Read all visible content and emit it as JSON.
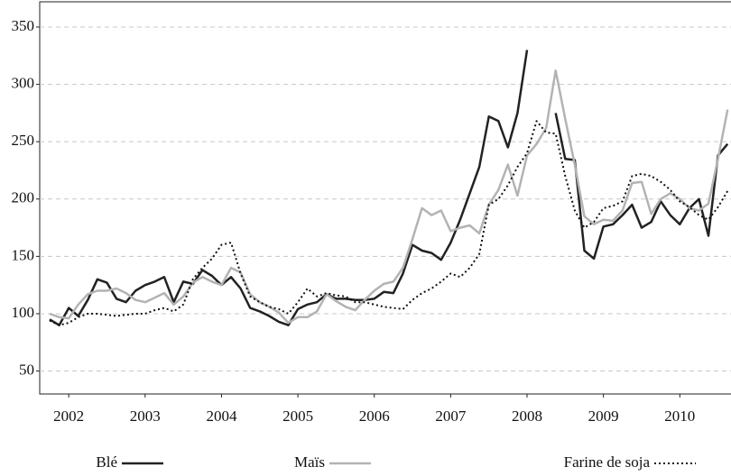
{
  "chart_data": {
    "type": "line",
    "x": [
      2001.75,
      2001.875,
      2002,
      2002.125,
      2002.25,
      2002.375,
      2002.5,
      2002.625,
      2002.75,
      2002.875,
      2003,
      2003.125,
      2003.25,
      2003.375,
      2003.5,
      2003.625,
      2003.75,
      2003.875,
      2004,
      2004.125,
      2004.25,
      2004.375,
      2004.5,
      2004.625,
      2004.75,
      2004.875,
      2005,
      2005.125,
      2005.25,
      2005.375,
      2005.5,
      2005.625,
      2005.75,
      2005.875,
      2006,
      2006.125,
      2006.25,
      2006.375,
      2006.5,
      2006.625,
      2006.75,
      2006.875,
      2007,
      2007.125,
      2007.25,
      2007.375,
      2007.5,
      2007.625,
      2007.75,
      2007.875,
      2008,
      2008.125,
      2008.25,
      2008.375,
      2008.5,
      2008.625,
      2008.75,
      2008.875,
      2009,
      2009.125,
      2009.25,
      2009.375,
      2009.5,
      2009.625,
      2009.75,
      2009.875,
      2010,
      2010.125,
      2010.25,
      2010.375,
      2010.5,
      2010.625
    ],
    "series": [
      {
        "name": "Blé",
        "color": "#222222",
        "style": "solid",
        "values": [
          95,
          90,
          105,
          98,
          112,
          130,
          127,
          113,
          110,
          120,
          125,
          128,
          132,
          110,
          128,
          126,
          138,
          133,
          125,
          132,
          122,
          105,
          102,
          98,
          93,
          90,
          104,
          108,
          110,
          117,
          113,
          113,
          112,
          112,
          113,
          119,
          118,
          135,
          160,
          155,
          153,
          147,
          162,
          182,
          205,
          228,
          272,
          268,
          245,
          275,
          330,
          null,
          null,
          275,
          235,
          234,
          155,
          148,
          176,
          178,
          186,
          195,
          175,
          180,
          198,
          186,
          178,
          192,
          200,
          168,
          238,
          248
        ]
      },
      {
        "name": "Maïs",
        "color": "#b3b3b3",
        "style": "solid",
        "values": [
          100,
          97,
          96,
          108,
          117,
          120,
          120,
          122,
          118,
          112,
          110,
          114,
          118,
          108,
          115,
          127,
          132,
          128,
          125,
          140,
          136,
          117,
          110,
          106,
          101,
          92,
          97,
          97,
          102,
          117,
          111,
          106,
          103,
          112,
          120,
          126,
          128,
          140,
          165,
          192,
          186,
          190,
          172,
          175,
          177,
          170,
          195,
          208,
          230,
          203,
          238,
          248,
          262,
          312,
          270,
          230,
          185,
          178,
          182,
          181,
          190,
          214,
          215,
          187,
          200,
          205,
          200,
          192,
          190,
          196,
          235,
          278
        ]
      },
      {
        "name": "Farine de soja",
        "color": "#111111",
        "style": "dotted",
        "values": [
          94,
          90,
          92,
          97,
          100,
          100,
          99,
          98,
          99,
          100,
          100,
          103,
          105,
          102,
          108,
          130,
          140,
          148,
          160,
          162,
          135,
          115,
          110,
          106,
          104,
          100,
          110,
          122,
          115,
          118,
          116,
          115,
          110,
          110,
          108,
          106,
          105,
          104,
          112,
          118,
          122,
          128,
          135,
          132,
          140,
          152,
          195,
          200,
          212,
          228,
          240,
          268,
          258,
          257,
          220,
          190,
          175,
          180,
          192,
          194,
          198,
          220,
          222,
          220,
          215,
          208,
          198,
          193,
          186,
          182,
          193,
          207
        ]
      }
    ],
    "xlim": [
      2001.62,
      2010.67
    ],
    "xticks": [
      2002,
      2003,
      2004,
      2005,
      2006,
      2007,
      2008,
      2009,
      2010
    ],
    "ylim": [
      30,
      372
    ],
    "yticks": [
      50,
      100,
      150,
      200,
      250,
      300,
      350
    ],
    "grid": true,
    "legend": "bottom"
  }
}
